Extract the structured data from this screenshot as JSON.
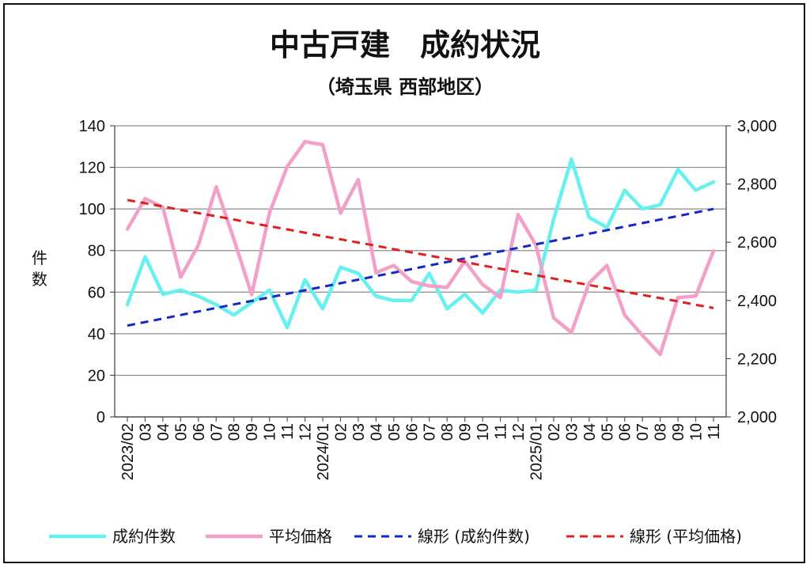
{
  "chart_data": {
    "type": "line",
    "title": "中古戸建　成約状況",
    "subtitle": "（埼玉県 西部地区）",
    "ylabel_left": "件数",
    "ylim_left": [
      0,
      140
    ],
    "yticks_left": [
      "0",
      "20",
      "40",
      "60",
      "80",
      "100",
      "120",
      "140"
    ],
    "ylim_right": [
      2000,
      3000
    ],
    "yticks_right": [
      "2,000",
      "2,200",
      "2,400",
      "2,600",
      "2,800",
      "3,000"
    ],
    "grid": true,
    "legend_position": "bottom",
    "x_tick_labels": [
      "2023/02",
      "03",
      "04",
      "05",
      "06",
      "07",
      "08",
      "09",
      "10",
      "11",
      "12",
      "2024/01",
      "02",
      "03",
      "04",
      "05",
      "06",
      "07",
      "08",
      "09",
      "10",
      "11",
      "12",
      "2025/01",
      "02",
      "03",
      "04",
      "05",
      "06",
      "07",
      "08",
      "09",
      "10",
      "11"
    ],
    "series": [
      {
        "name": "成約件数",
        "axis": "left",
        "color": "#66f0f0",
        "style": "solid",
        "values": [
          54,
          77,
          59,
          61,
          58,
          54,
          49,
          55,
          61,
          43,
          66,
          52,
          72,
          69,
          58,
          56,
          56,
          69,
          52,
          59,
          50,
          61,
          60,
          61,
          95,
          124,
          96,
          91,
          109,
          100,
          102,
          119,
          109,
          113
        ]
      },
      {
        "name": "平均価格",
        "axis": "right",
        "color": "#f2a0c8",
        "style": "solid",
        "values": [
          2645,
          2750,
          2720,
          2480,
          2590,
          2790,
          2610,
          2420,
          2700,
          2860,
          2945,
          2935,
          2700,
          2815,
          2495,
          2520,
          2465,
          2450,
          2445,
          2535,
          2455,
          2410,
          2695,
          2590,
          2340,
          2290,
          2460,
          2520,
          2350,
          2280,
          2215,
          2410,
          2415,
          2570
        ]
      },
      {
        "name": "線形 (成約件数)",
        "axis": "left",
        "color": "#1428c8",
        "style": "dashed",
        "values": [
          43.9,
          45.6,
          47.3,
          49.0,
          50.7,
          52.4,
          54.1,
          55.8,
          57.5,
          59.2,
          60.9,
          62.6,
          64.3,
          66.0,
          67.7,
          69.4,
          71.1,
          72.8,
          74.5,
          76.2,
          77.9,
          79.6,
          81.3,
          83.0,
          84.7,
          86.4,
          88.1,
          89.8,
          91.5,
          93.2,
          94.9,
          96.6,
          98.3,
          100.0
        ]
      },
      {
        "name": "線形 (平均価格)",
        "axis": "right",
        "color": "#e02020",
        "style": "dashed",
        "values": [
          2745,
          2734,
          2723,
          2711,
          2700,
          2689,
          2678,
          2666,
          2655,
          2644,
          2633,
          2621,
          2610,
          2599,
          2588,
          2576,
          2565,
          2554,
          2543,
          2532,
          2520,
          2509,
          2498,
          2487,
          2475,
          2464,
          2453,
          2442,
          2430,
          2419,
          2408,
          2397,
          2385,
          2374
        ]
      }
    ]
  }
}
